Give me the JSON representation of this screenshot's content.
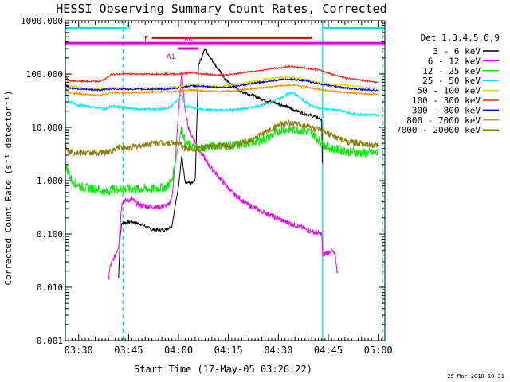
{
  "chart_data": {
    "type": "line",
    "title": "HESSI Observing Summary Count Rates, Corrected",
    "xlabel": "Start Time (17-May-05 03:26:22)",
    "ylabel": "Corrected Count Rate (s⁻¹ detector⁻¹)",
    "ylog": true,
    "ylim": [
      0.001,
      1000
    ],
    "xlim_minutes": [
      0,
      96
    ],
    "x_ticks": [
      {
        "m": 4,
        "label": "03:30"
      },
      {
        "m": 19,
        "label": "03:45"
      },
      {
        "m": 34,
        "label": "04:00"
      },
      {
        "m": 49,
        "label": "04:15"
      },
      {
        "m": 64,
        "label": "04:30"
      },
      {
        "m": 79,
        "label": "04:45"
      },
      {
        "m": 94,
        "label": "05:00"
      }
    ],
    "y_ticks": [
      {
        "v": 1000,
        "label": "1000.000"
      },
      {
        "v": 100,
        "label": "100.000"
      },
      {
        "v": 10,
        "label": "10.000"
      },
      {
        "v": 1,
        "label": "1.000"
      },
      {
        "v": 0.1,
        "label": "0.100"
      },
      {
        "v": 0.01,
        "label": "0.010"
      },
      {
        "v": 0.001,
        "label": "0.001"
      }
    ],
    "legend_title": "Det 1,3,4,5,6,9",
    "legend_position": "right",
    "timestamp": "25-Mar-2010 10:31",
    "flag_bars": [
      {
        "label": "N",
        "color": "#00e5e5",
        "y": 720,
        "segments": [
          [
            0,
            18.5
          ],
          [
            77.5,
            96
          ]
        ]
      },
      {
        "label": "F",
        "color": "#dd0000",
        "y": 480,
        "segments": [
          [
            26,
            74
          ]
        ]
      },
      {
        "label": "A0",
        "color": "#dd00dd",
        "y": 380,
        "segments": [
          [
            0,
            96
          ]
        ]
      },
      {
        "label": "A1",
        "color": "#dd00dd",
        "y": 300,
        "segments": [
          [
            34,
            40
          ]
        ]
      }
    ],
    "boundaries": [
      {
        "m": 0,
        "style": "solid",
        "color": "#00cccc"
      },
      {
        "m": 17.3,
        "style": "dashed",
        "color": "#00cccc"
      },
      {
        "m": 77.3,
        "style": "solid",
        "color": "#00cccc"
      },
      {
        "m": 95.3,
        "style": "dashed",
        "color": "#00cccc"
      }
    ],
    "series": [
      {
        "name": "3 - 6 keV",
        "color": "#000000",
        "noise": 0.03,
        "points": [
          [
            16,
            0.015
          ],
          [
            16.5,
            0.1
          ],
          [
            17,
            0.16
          ],
          [
            20,
            0.17
          ],
          [
            23,
            0.15
          ],
          [
            26,
            0.12
          ],
          [
            30,
            0.12
          ],
          [
            32,
            0.14
          ],
          [
            34,
            0.8
          ],
          [
            35,
            3
          ],
          [
            36,
            0.9
          ],
          [
            38,
            0.9
          ],
          [
            39,
            1
          ],
          [
            40,
            150
          ],
          [
            42,
            300
          ],
          [
            43,
            230
          ],
          [
            45,
            150
          ],
          [
            48,
            80
          ],
          [
            52,
            50
          ],
          [
            56,
            40
          ],
          [
            60,
            32
          ],
          [
            64,
            28
          ],
          [
            68,
            22
          ],
          [
            72,
            18
          ],
          [
            76,
            15
          ],
          [
            77,
            14
          ],
          [
            77.3,
            0.8
          ]
        ]
      },
      {
        "name": "6 - 12 keV",
        "color": "#ee00ee",
        "noise": 0.05,
        "points": [
          [
            13,
            0.015
          ],
          [
            13.5,
            0.025
          ],
          [
            15,
            0.04
          ],
          [
            16,
            0.06
          ],
          [
            17,
            0.4
          ],
          [
            20,
            0.45
          ],
          [
            22,
            0.35
          ],
          [
            25,
            0.33
          ],
          [
            28,
            0.32
          ],
          [
            31,
            0.35
          ],
          [
            32,
            0.5
          ],
          [
            33,
            2
          ],
          [
            34,
            20
          ],
          [
            35,
            110
          ],
          [
            36,
            20
          ],
          [
            37,
            10
          ],
          [
            38,
            7
          ],
          [
            40,
            4
          ],
          [
            43,
            2
          ],
          [
            46,
            1.2
          ],
          [
            50,
            0.6
          ],
          [
            55,
            0.35
          ],
          [
            60,
            0.25
          ],
          [
            65,
            0.18
          ],
          [
            70,
            0.14
          ],
          [
            74,
            0.11
          ],
          [
            77,
            0.1
          ],
          [
            77.3,
            0.04
          ],
          [
            80,
            0.05
          ],
          [
            81,
            0.04
          ],
          [
            82,
            0.015
          ]
        ]
      },
      {
        "name": "12 - 25 keV",
        "color": "#00ee00",
        "noise": 0.09,
        "points": [
          [
            0,
            2
          ],
          [
            2,
            1
          ],
          [
            5,
            0.75
          ],
          [
            10,
            0.7
          ],
          [
            12,
            0.6
          ],
          [
            14,
            0.7
          ],
          [
            18,
            0.7
          ],
          [
            22,
            0.7
          ],
          [
            26,
            0.7
          ],
          [
            30,
            0.75
          ],
          [
            32,
            1
          ],
          [
            34,
            5
          ],
          [
            35,
            10
          ],
          [
            36,
            5
          ],
          [
            40,
            4
          ],
          [
            45,
            4.5
          ],
          [
            50,
            4.5
          ],
          [
            55,
            5
          ],
          [
            60,
            6
          ],
          [
            65,
            9
          ],
          [
            70,
            9
          ],
          [
            74,
            8
          ],
          [
            77,
            5
          ],
          [
            80,
            4
          ],
          [
            85,
            3.5
          ],
          [
            90,
            3.3
          ],
          [
            94,
            3.3
          ]
        ]
      },
      {
        "name": "25 - 50 keV",
        "color": "#00eeee",
        "noise": 0.025,
        "points": [
          [
            0,
            60
          ],
          [
            1,
            30
          ],
          [
            4,
            26
          ],
          [
            8,
            24
          ],
          [
            12,
            22
          ],
          [
            14,
            25
          ],
          [
            16,
            24
          ],
          [
            18,
            23
          ],
          [
            22,
            22
          ],
          [
            26,
            22
          ],
          [
            30,
            22
          ],
          [
            32,
            25
          ],
          [
            34,
            35
          ],
          [
            35,
            40
          ],
          [
            36,
            25
          ],
          [
            40,
            22
          ],
          [
            45,
            21
          ],
          [
            50,
            21
          ],
          [
            55,
            23
          ],
          [
            60,
            27
          ],
          [
            63,
            32
          ],
          [
            66,
            40
          ],
          [
            68,
            45
          ],
          [
            70,
            38
          ],
          [
            72,
            30
          ],
          [
            74,
            25
          ],
          [
            78,
            22
          ],
          [
            82,
            21
          ],
          [
            86,
            18
          ],
          [
            90,
            17
          ],
          [
            94,
            17
          ]
        ]
      },
      {
        "name": "50 - 100 keV",
        "color": "#dddd00",
        "noise": 0.015,
        "points": [
          [
            0,
            110
          ],
          [
            1,
            60
          ],
          [
            5,
            55
          ],
          [
            10,
            52
          ],
          [
            14,
            56
          ],
          [
            18,
            54
          ],
          [
            22,
            55
          ],
          [
            26,
            55
          ],
          [
            30,
            55
          ],
          [
            34,
            58
          ],
          [
            38,
            62
          ],
          [
            42,
            60
          ],
          [
            46,
            58
          ],
          [
            50,
            62
          ],
          [
            55,
            70
          ],
          [
            60,
            80
          ],
          [
            64,
            85
          ],
          [
            68,
            86
          ],
          [
            72,
            80
          ],
          [
            76,
            70
          ],
          [
            80,
            65
          ],
          [
            84,
            62
          ],
          [
            88,
            58
          ],
          [
            92,
            55
          ],
          [
            94,
            55
          ]
        ]
      },
      {
        "name": "100 - 300 keV",
        "color": "#ff2020",
        "noise": 0.015,
        "points": [
          [
            0,
            90
          ],
          [
            1,
            75
          ],
          [
            5,
            73
          ],
          [
            10,
            72
          ],
          [
            12,
            80
          ],
          [
            14,
            100
          ],
          [
            18,
            100
          ],
          [
            22,
            100
          ],
          [
            26,
            100
          ],
          [
            30,
            100
          ],
          [
            34,
            100
          ],
          [
            38,
            105
          ],
          [
            42,
            100
          ],
          [
            46,
            95
          ],
          [
            50,
            98
          ],
          [
            55,
            110
          ],
          [
            60,
            120
          ],
          [
            64,
            130
          ],
          [
            68,
            140
          ],
          [
            72,
            130
          ],
          [
            76,
            120
          ],
          [
            80,
            100
          ],
          [
            84,
            85
          ],
          [
            88,
            78
          ],
          [
            92,
            72
          ],
          [
            94,
            70
          ]
        ]
      },
      {
        "name": "300 - 800 keV",
        "color": "#0000dd",
        "noise": 0.015,
        "points": [
          [
            0,
            65
          ],
          [
            1,
            55
          ],
          [
            5,
            52
          ],
          [
            10,
            50
          ],
          [
            14,
            53
          ],
          [
            18,
            52
          ],
          [
            22,
            52
          ],
          [
            26,
            52
          ],
          [
            30,
            52
          ],
          [
            34,
            55
          ],
          [
            38,
            60
          ],
          [
            42,
            58
          ],
          [
            46,
            56
          ],
          [
            50,
            58
          ],
          [
            55,
            65
          ],
          [
            60,
            72
          ],
          [
            64,
            78
          ],
          [
            68,
            80
          ],
          [
            72,
            75
          ],
          [
            76,
            66
          ],
          [
            80,
            60
          ],
          [
            84,
            55
          ],
          [
            88,
            52
          ],
          [
            92,
            50
          ],
          [
            94,
            50
          ]
        ]
      },
      {
        "name": "800 - 7000 keV",
        "color": "#ff8800",
        "noise": 0.015,
        "points": [
          [
            0,
            55
          ],
          [
            1,
            45
          ],
          [
            5,
            42
          ],
          [
            10,
            40
          ],
          [
            14,
            45
          ],
          [
            18,
            44
          ],
          [
            22,
            45
          ],
          [
            26,
            46
          ],
          [
            30,
            46
          ],
          [
            34,
            48
          ],
          [
            38,
            50
          ],
          [
            42,
            48
          ],
          [
            46,
            47
          ],
          [
            50,
            48
          ],
          [
            55,
            52
          ],
          [
            60,
            56
          ],
          [
            64,
            60
          ],
          [
            68,
            62
          ],
          [
            72,
            58
          ],
          [
            76,
            52
          ],
          [
            80,
            48
          ],
          [
            84,
            45
          ],
          [
            88,
            43
          ],
          [
            92,
            42
          ],
          [
            94,
            42
          ]
        ]
      },
      {
        "name": "7000 - 20000 keV",
        "color": "#8a7a00",
        "noise": 0.06,
        "points": [
          [
            0,
            5
          ],
          [
            1,
            3.5
          ],
          [
            5,
            3.3
          ],
          [
            10,
            3.3
          ],
          [
            14,
            3.5
          ],
          [
            16,
            4.5
          ],
          [
            18,
            4
          ],
          [
            22,
            4.5
          ],
          [
            26,
            5
          ],
          [
            30,
            5.2
          ],
          [
            34,
            5
          ],
          [
            36,
            4
          ],
          [
            40,
            4
          ],
          [
            45,
            4.5
          ],
          [
            50,
            4.5
          ],
          [
            55,
            5.5
          ],
          [
            60,
            8
          ],
          [
            64,
            11
          ],
          [
            68,
            12
          ],
          [
            72,
            11
          ],
          [
            76,
            9
          ],
          [
            80,
            7
          ],
          [
            84,
            5.5
          ],
          [
            88,
            5
          ],
          [
            92,
            4.5
          ],
          [
            94,
            4.5
          ]
        ]
      }
    ]
  }
}
